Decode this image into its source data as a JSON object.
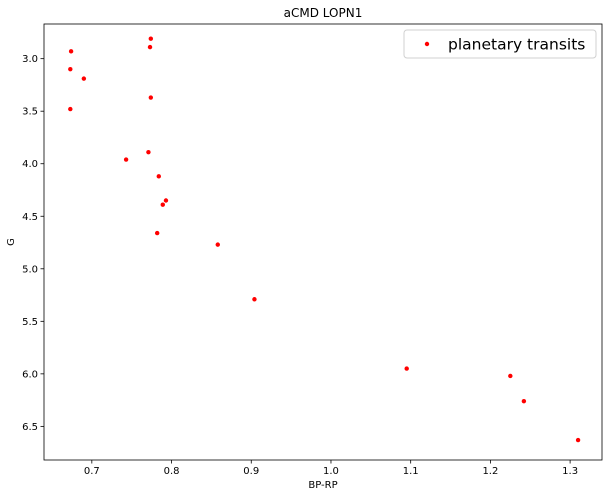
{
  "chart_data": {
    "type": "scatter",
    "title": "aCMD LOPN1",
    "xlabel": "BP-RP",
    "ylabel": "G",
    "xlim": [
      0.64,
      1.34
    ],
    "ylim": [
      6.82,
      2.67
    ],
    "y_inverted": true,
    "grid": false,
    "legend_position": "top-right",
    "x_ticks": [
      0.7,
      0.8,
      0.9,
      1.0,
      1.1,
      1.2,
      1.3
    ],
    "x_tick_labels": [
      "0.7",
      "0.8",
      "0.9",
      "1.0",
      "1.1",
      "1.2",
      "1.3"
    ],
    "y_ticks": [
      3.0,
      3.5,
      4.0,
      4.5,
      5.0,
      5.5,
      6.0,
      6.5
    ],
    "y_tick_labels": [
      "3.0",
      "3.5",
      "4.0",
      "4.5",
      "5.0",
      "5.5",
      "6.0",
      "6.5"
    ],
    "series": [
      {
        "name": "planetary transits",
        "color": "#ff0000",
        "points": [
          {
            "x": 0.674,
            "y": 2.93
          },
          {
            "x": 0.673,
            "y": 3.1
          },
          {
            "x": 0.69,
            "y": 3.19
          },
          {
            "x": 0.673,
            "y": 3.48
          },
          {
            "x": 0.774,
            "y": 2.81
          },
          {
            "x": 0.773,
            "y": 2.89
          },
          {
            "x": 0.774,
            "y": 3.37
          },
          {
            "x": 0.743,
            "y": 3.96
          },
          {
            "x": 0.771,
            "y": 3.89
          },
          {
            "x": 0.784,
            "y": 4.12
          },
          {
            "x": 0.793,
            "y": 4.35
          },
          {
            "x": 0.789,
            "y": 4.39
          },
          {
            "x": 0.782,
            "y": 4.66
          },
          {
            "x": 0.858,
            "y": 4.77
          },
          {
            "x": 0.904,
            "y": 5.29
          },
          {
            "x": 1.095,
            "y": 5.95
          },
          {
            "x": 1.225,
            "y": 6.02
          },
          {
            "x": 1.242,
            "y": 6.26
          },
          {
            "x": 1.31,
            "y": 6.63
          }
        ]
      }
    ]
  }
}
